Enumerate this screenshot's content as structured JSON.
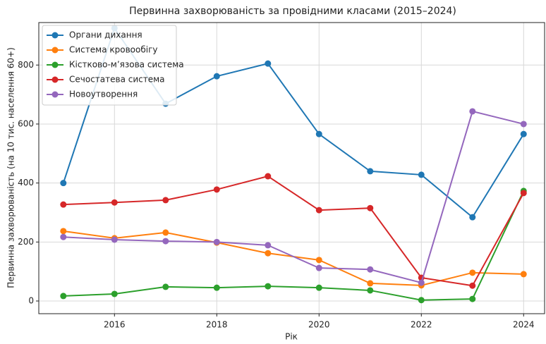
{
  "chart_data": {
    "type": "line",
    "title": "Первинна захворюваність за провідними класами (2015–2024)",
    "x_label": "Рік",
    "y_label": "Первинна захворюваність (на 10 тис. населення 60+)",
    "x": [
      2015,
      2016,
      2017,
      2018,
      2019,
      2020,
      2021,
      2022,
      2023,
      2024
    ],
    "series": [
      {
        "name": "Органи дихання",
        "color": "#1f77b4",
        "values": [
          400,
          925,
          669,
          762,
          805,
          566,
          440,
          428,
          284,
          566
        ]
      },
      {
        "name": "Система кровообігу",
        "color": "#ff7f0e",
        "values": [
          237,
          213,
          232,
          198,
          162,
          139,
          60,
          53,
          96,
          91
        ]
      },
      {
        "name": "Кістково-м’язова система",
        "color": "#2ca02c",
        "values": [
          17,
          24,
          48,
          45,
          50,
          45,
          36,
          3,
          7,
          373
        ]
      },
      {
        "name": "Сечостатева система",
        "color": "#d62728",
        "values": [
          327,
          334,
          342,
          378,
          423,
          308,
          315,
          79,
          52,
          366
        ]
      },
      {
        "name": "Новоутворення",
        "color": "#9467bd",
        "values": [
          217,
          208,
          203,
          200,
          189,
          112,
          107,
          62,
          643,
          600
        ]
      }
    ],
    "xlim": [
      2014.52,
      2024.41
    ],
    "xticks": [
      2016,
      2018,
      2020,
      2022,
      2024
    ],
    "ylim": [
      -43,
      944
    ],
    "yticks": [
      0,
      200,
      400,
      600,
      800
    ],
    "grid": true,
    "legend": "upper left"
  }
}
